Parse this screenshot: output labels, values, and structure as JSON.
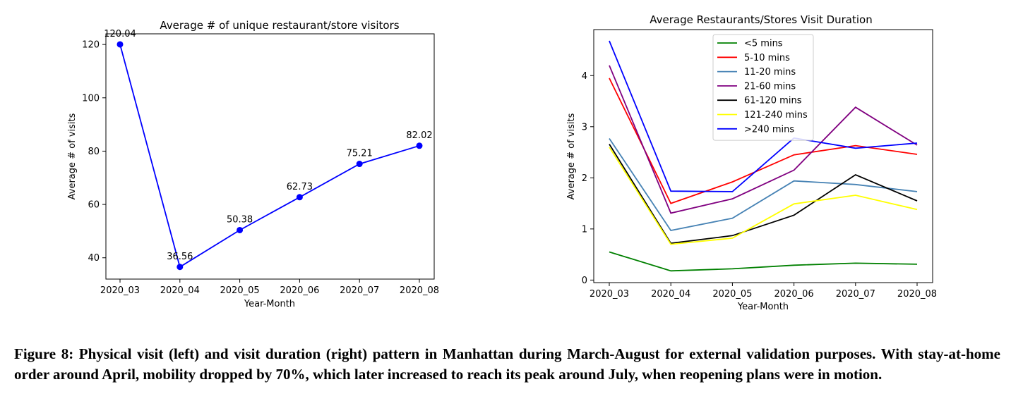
{
  "chart_data": [
    {
      "type": "line",
      "title": "Average # of unique restaurant/store visitors",
      "xlabel": "Year-Month",
      "ylabel": "Average # of visits",
      "categories": [
        "2020_03",
        "2020_04",
        "2020_05",
        "2020_06",
        "2020_07",
        "2020_08"
      ],
      "series": [
        {
          "values": [
            120.04,
            36.56,
            50.38,
            62.73,
            75.21,
            82.02
          ],
          "color": "#0000ff",
          "markers": true
        }
      ],
      "data_labels": [
        "120.04",
        "36.56",
        "50.38",
        "62.73",
        "75.21",
        "82.02"
      ],
      "yticks": [
        40,
        60,
        80,
        100,
        120
      ],
      "ylim": [
        32,
        124
      ],
      "grid": false
    },
    {
      "type": "line",
      "title": "Average Restaurants/Stores Visit Duration",
      "xlabel": "Year-Month",
      "ylabel": "Average # of visits",
      "categories": [
        "2020_03",
        "2020_04",
        "2020_05",
        "2020_06",
        "2020_07",
        "2020_08"
      ],
      "series": [
        {
          "name": "<5 mins",
          "color": "#008000",
          "values": [
            0.55,
            0.18,
            0.22,
            0.29,
            0.33,
            0.31
          ]
        },
        {
          "name": "5-10 mins",
          "color": "#ff0000",
          "values": [
            3.95,
            1.5,
            1.92,
            2.45,
            2.63,
            2.46
          ]
        },
        {
          "name": "11-20 mins",
          "color": "#4682b4",
          "values": [
            2.77,
            0.97,
            1.21,
            1.94,
            1.87,
            1.73
          ]
        },
        {
          "name": "21-60 mins",
          "color": "#800080",
          "values": [
            4.2,
            1.31,
            1.59,
            2.15,
            3.38,
            2.64
          ]
        },
        {
          "name": "61-120 mins",
          "color": "#000000",
          "values": [
            2.66,
            0.72,
            0.87,
            1.27,
            2.06,
            1.55
          ]
        },
        {
          "name": "121-240 mins",
          "color": "#ffff00",
          "values": [
            2.6,
            0.7,
            0.82,
            1.49,
            1.66,
            1.38
          ]
        },
        {
          "name": ">240 mins",
          "color": "#0000ff",
          "values": [
            4.68,
            1.74,
            1.73,
            2.78,
            2.58,
            2.68
          ]
        }
      ],
      "yticks": [
        0,
        1,
        2,
        3,
        4
      ],
      "ylim": [
        -0.05,
        4.9
      ],
      "legend": "top-center",
      "grid": false
    }
  ],
  "caption": "Figure 8: Physical visit (left) and visit duration (right) pattern in Manhattan during March-August for external validation purposes. With stay-at-home order around April, mobility dropped by 70%, which later increased to reach its peak around July, when reopening plans were in motion."
}
